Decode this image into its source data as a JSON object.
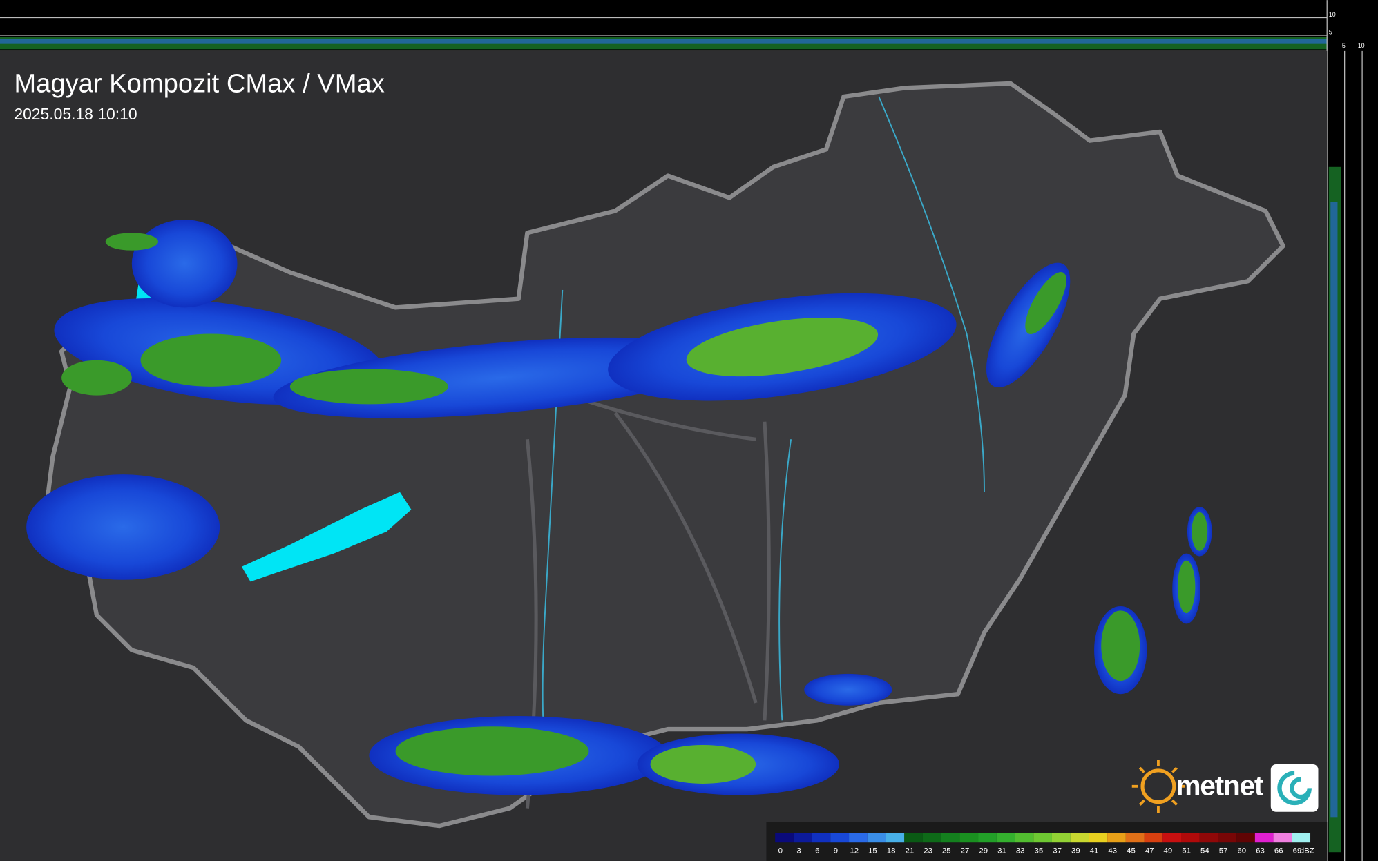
{
  "header": {
    "title": "Magyar Kompozit CMax / VMax",
    "timestamp": "2025.05.18 10:10"
  },
  "profile_axes": {
    "top": [
      10,
      5
    ],
    "right": [
      5,
      10
    ]
  },
  "legend": {
    "labels": [
      0,
      3,
      6,
      9,
      12,
      15,
      18,
      21,
      23,
      25,
      27,
      29,
      31,
      33,
      35,
      37,
      39,
      41,
      43,
      45,
      47,
      49,
      51,
      54,
      57,
      60,
      63,
      66,
      69
    ],
    "unit": "dBZ",
    "colors": [
      "#0a0a7a",
      "#0c1a9a",
      "#1030c0",
      "#1848d8",
      "#2a6ae8",
      "#3a8ee8",
      "#48b0e8",
      "#0a5a14",
      "#0e6a18",
      "#14801e",
      "#1a9020",
      "#22a028",
      "#34b02e",
      "#52bd30",
      "#6ec832",
      "#92d234",
      "#c8d830",
      "#e8d020",
      "#e8a018",
      "#e07018",
      "#d84010",
      "#c81010",
      "#b00a0a",
      "#900808",
      "#780606",
      "#600404",
      "#e020d0",
      "#f080e0",
      "#a0f0f0"
    ]
  },
  "logo": {
    "text": "metnet"
  }
}
